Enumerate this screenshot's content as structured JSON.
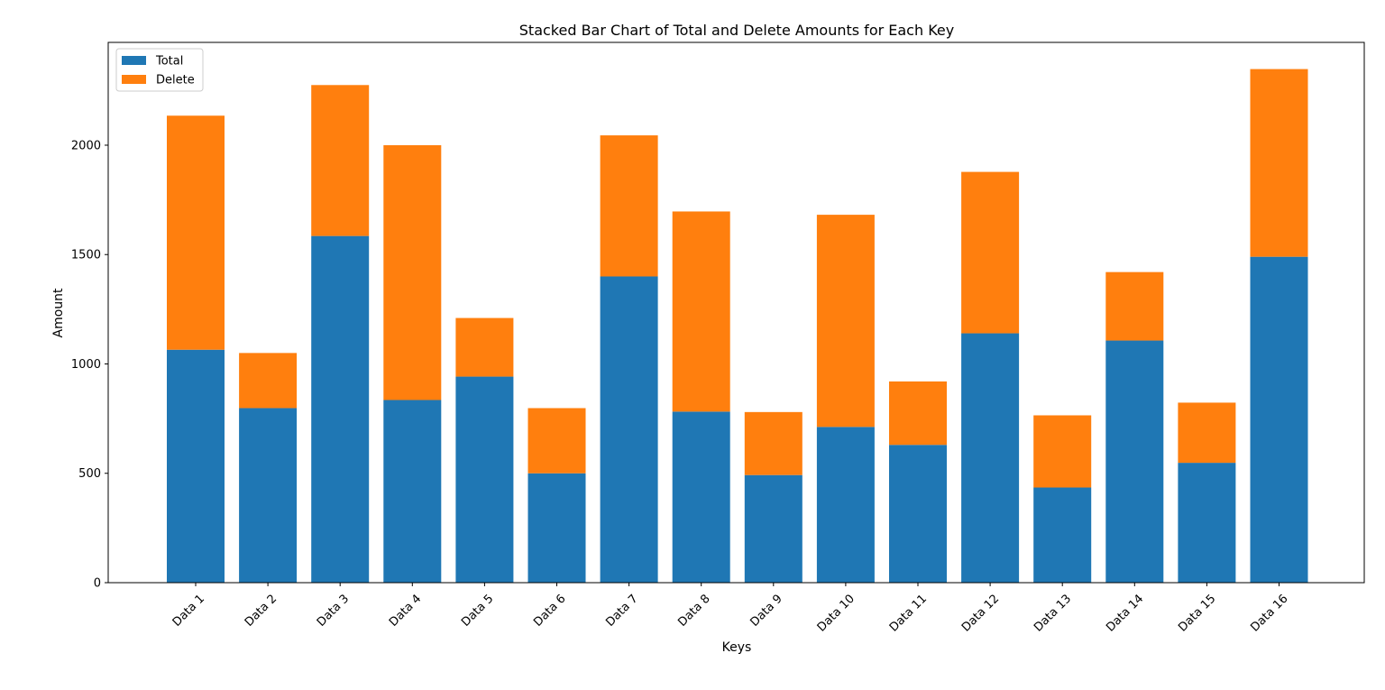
{
  "chart_data": {
    "type": "bar",
    "stacked": true,
    "title": "Stacked Bar Chart of Total and Delete Amounts for Each Key",
    "xlabel": "Keys",
    "ylabel": "Amount",
    "ylim": [
      0,
      2470
    ],
    "yticks": [
      0,
      500,
      1000,
      1500,
      2000
    ],
    "grid": false,
    "legend_position": "top-left",
    "categories": [
      "Data 1",
      "Data 2",
      "Data 3",
      "Data 4",
      "Data 5",
      "Data 6",
      "Data 7",
      "Data 8",
      "Data 9",
      "Data 10",
      "Data 11",
      "Data 12",
      "Data 13",
      "Data 14",
      "Data 15",
      "Data 16"
    ],
    "series": [
      {
        "name": "Total",
        "color": "#1f77b4",
        "values": [
          1065,
          798,
          1585,
          835,
          942,
          500,
          1400,
          782,
          492,
          712,
          630,
          1140,
          435,
          1107,
          548,
          1490
        ]
      },
      {
        "name": "Delete",
        "color": "#ff7f0e",
        "values": [
          1070,
          252,
          690,
          1165,
          268,
          298,
          645,
          915,
          288,
          970,
          290,
          738,
          330,
          313,
          275,
          858
        ]
      }
    ]
  }
}
